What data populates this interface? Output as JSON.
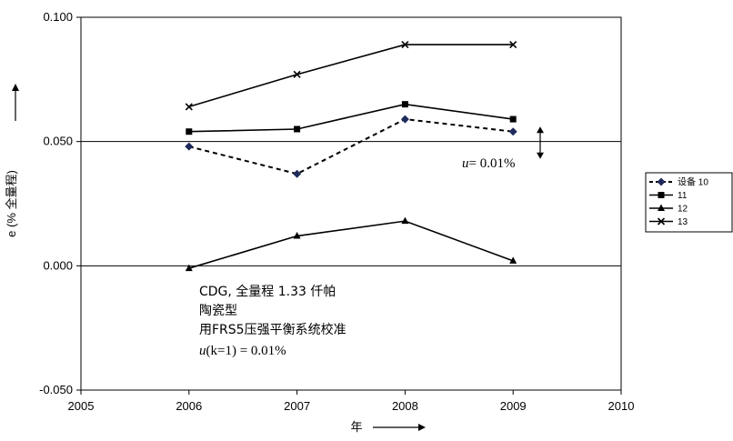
{
  "chart_data": {
    "type": "line",
    "title": "",
    "xlabel": "年",
    "ylabel": "e (% 全量程)",
    "xlim": [
      2005,
      2010
    ],
    "ylim": [
      -0.05,
      0.1
    ],
    "x_ticks": [
      "2005",
      "2006",
      "2007",
      "2008",
      "2009",
      "2010"
    ],
    "y_ticks": [
      "0.100",
      "0.050",
      "0.000",
      "-0.050"
    ],
    "grid": "horizontal at 0.050 and 0.000",
    "legend_position": "right",
    "x": [
      2006,
      2007,
      2008,
      2009
    ],
    "series": [
      {
        "name": "设备 10",
        "values": [
          0.048,
          0.037,
          0.059,
          0.054
        ],
        "marker": "diamond",
        "line": "dashed",
        "color": "#1f2a5c"
      },
      {
        "name": "11",
        "values": [
          0.054,
          0.055,
          0.065,
          0.059
        ],
        "marker": "square",
        "line": "solid",
        "color": "#000000"
      },
      {
        "name": "12",
        "values": [
          -0.001,
          0.012,
          0.018,
          0.002
        ],
        "marker": "triangle",
        "line": "solid",
        "color": "#000000"
      },
      {
        "name": "13",
        "values": [
          0.064,
          0.077,
          0.089,
          0.089
        ],
        "marker": "x",
        "line": "solid",
        "color": "#000000"
      }
    ],
    "annotations": {
      "uncertainty_label": "= 0.01%",
      "uncertainty_symbol": "u",
      "uncertainty_range": [
        0.043,
        0.056
      ],
      "note_line1": "CDG, 全量程 1.33 仟帕",
      "note_line2": "陶瓷型",
      "note_line3": "用FRS5压强平衡系统校准",
      "note_line4": "(k=1) = 0.01%"
    }
  }
}
